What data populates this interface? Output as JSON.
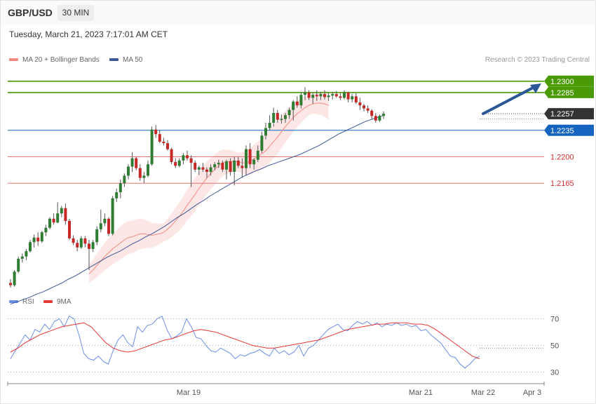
{
  "header": {
    "symbol": "GBP/USD",
    "timeframe": "30 MIN"
  },
  "datetime": "Tuesday, March 21, 2023 7:17:01 AM CET",
  "legend": {
    "ma20": "MA 20 + Bollinger Bands",
    "ma50": "MA 50",
    "rsi": "RSI",
    "ma9": "9MA"
  },
  "copyright": "Research © 2023 Trading Central",
  "colors": {
    "bull": "#2e7d32",
    "bear": "#c62828",
    "band_fill": "#fde2e2",
    "ma20": "#f28b82",
    "ma50": "#3b5998",
    "resistance": "#4a9a06",
    "support_blue": "#1565c0",
    "support_red": "#e57373",
    "arrow": "#2b5797",
    "rsi": "#6b8ee6",
    "rsi_ma": "#e53935"
  },
  "chart_data": [
    {
      "type": "candlestick",
      "title": "GBP/USD",
      "ylim": [
        1.2025,
        1.231
      ],
      "x_ticks": [
        "Mar 19",
        "Mar 21",
        "Mar 22",
        "Apr 3"
      ],
      "levels": [
        {
          "value": 1.23,
          "label": "1.2300",
          "kind": "resistance"
        },
        {
          "value": 1.2285,
          "label": "1.2285",
          "kind": "resistance"
        },
        {
          "value": 1.2257,
          "label": "1.2257",
          "kind": "last"
        },
        {
          "value": 1.2235,
          "label": "1.2235",
          "kind": "pivot"
        },
        {
          "value": 1.22,
          "label": "1.2200",
          "kind": "support"
        },
        {
          "value": 1.2165,
          "label": "1.2165",
          "kind": "support"
        }
      ],
      "candles": [
        [
          1.2033,
          1.2038,
          1.2027,
          1.203
        ],
        [
          1.203,
          1.205,
          1.2028,
          1.2048
        ],
        [
          1.2048,
          1.2068,
          1.2046,
          1.2065
        ],
        [
          1.2065,
          1.2072,
          1.206,
          1.2068
        ],
        [
          1.2068,
          1.2078,
          1.2063,
          1.2075
        ],
        [
          1.2075,
          1.209,
          1.2073,
          1.2087
        ],
        [
          1.2087,
          1.2097,
          1.208,
          1.2093
        ],
        [
          1.2093,
          1.21,
          1.2082,
          1.2088
        ],
        [
          1.2088,
          1.2102,
          1.2086,
          1.21
        ],
        [
          1.21,
          1.211,
          1.2095,
          1.2106
        ],
        [
          1.2106,
          1.212,
          1.2104,
          1.2118
        ],
        [
          1.2118,
          1.2125,
          1.211,
          1.2113
        ],
        [
          1.2113,
          1.214,
          1.2112,
          1.2125
        ],
        [
          1.2125,
          1.2135,
          1.212,
          1.2132
        ],
        [
          1.2132,
          1.2138,
          1.211,
          1.2115
        ],
        [
          1.2115,
          1.2118,
          1.209,
          1.2092
        ],
        [
          1.2092,
          1.2096,
          1.2083,
          1.2086
        ],
        [
          1.2086,
          1.209,
          1.2075,
          1.208
        ],
        [
          1.208,
          1.2095,
          1.2078,
          1.2092
        ],
        [
          1.2092,
          1.2095,
          1.208,
          1.2085
        ],
        [
          1.2085,
          1.209,
          1.205,
          1.2078
        ],
        [
          1.2078,
          1.209,
          1.2074,
          1.2087
        ],
        [
          1.2087,
          1.2108,
          1.2083,
          1.2104
        ],
        [
          1.2104,
          1.213,
          1.21,
          1.2112
        ],
        [
          1.2112,
          1.2125,
          1.2108,
          1.2118
        ],
        [
          1.2118,
          1.212,
          1.2095,
          1.2098
        ],
        [
          1.2098,
          1.2148,
          1.2096,
          1.2145
        ],
        [
          1.2145,
          1.2158,
          1.214,
          1.2153
        ],
        [
          1.2153,
          1.217,
          1.2145,
          1.2165
        ],
        [
          1.2165,
          1.2178,
          1.216,
          1.2175
        ],
        [
          1.2175,
          1.219,
          1.217,
          1.2187
        ],
        [
          1.2187,
          1.2206,
          1.218,
          1.2198
        ],
        [
          1.2198,
          1.22,
          1.2182,
          1.2185
        ],
        [
          1.2185,
          1.219,
          1.2168,
          1.2172
        ],
        [
          1.2172,
          1.218,
          1.2165,
          1.2175
        ],
        [
          1.2175,
          1.2195,
          1.2173,
          1.219
        ],
        [
          1.219,
          1.224,
          1.2188,
          1.2236
        ],
        [
          1.2236,
          1.2242,
          1.2225,
          1.223
        ],
        [
          1.223,
          1.2235,
          1.2218,
          1.222
        ],
        [
          1.222,
          1.2225,
          1.2215,
          1.2218
        ],
        [
          1.2218,
          1.2222,
          1.2208,
          1.221
        ],
        [
          1.221,
          1.2212,
          1.219,
          1.2193
        ],
        [
          1.2193,
          1.2198,
          1.2185,
          1.2188
        ],
        [
          1.2188,
          1.2198,
          1.2186,
          1.2195
        ],
        [
          1.2195,
          1.2205,
          1.219,
          1.2202
        ],
        [
          1.2202,
          1.2208,
          1.2195,
          1.2198
        ],
        [
          1.2198,
          1.2202,
          1.216,
          1.2192
        ],
        [
          1.2192,
          1.2195,
          1.218,
          1.2183
        ],
        [
          1.2183,
          1.2188,
          1.2176,
          1.2186
        ],
        [
          1.2186,
          1.2192,
          1.218,
          1.2183
        ],
        [
          1.2183,
          1.2186,
          1.2172,
          1.218
        ],
        [
          1.218,
          1.219,
          1.2175,
          1.2186
        ],
        [
          1.2186,
          1.2193,
          1.2182,
          1.219
        ],
        [
          1.219,
          1.2196,
          1.2185,
          1.2192
        ],
        [
          1.2192,
          1.2195,
          1.218,
          1.2183
        ],
        [
          1.2183,
          1.2196,
          1.217,
          1.2194
        ],
        [
          1.2194,
          1.2198,
          1.2175,
          1.218
        ],
        [
          1.218,
          1.22,
          1.2162,
          1.2195
        ],
        [
          1.2195,
          1.22,
          1.2185,
          1.2188
        ],
        [
          1.2188,
          1.2198,
          1.2172,
          1.2185
        ],
        [
          1.2185,
          1.2215,
          1.2175,
          1.221
        ],
        [
          1.221,
          1.2218,
          1.2185,
          1.219
        ],
        [
          1.219,
          1.2198,
          1.2183,
          1.2196
        ],
        [
          1.2196,
          1.2215,
          1.2193,
          1.2208
        ],
        [
          1.2208,
          1.2233,
          1.2205,
          1.2228
        ],
        [
          1.2228,
          1.2245,
          1.2223,
          1.2238
        ],
        [
          1.2238,
          1.2255,
          1.2235,
          1.2245
        ],
        [
          1.2245,
          1.2265,
          1.224,
          1.2258
        ],
        [
          1.2258,
          1.2262,
          1.2245,
          1.2249
        ],
        [
          1.2249,
          1.2256,
          1.2244,
          1.225
        ],
        [
          1.225,
          1.2258,
          1.2245,
          1.2255
        ],
        [
          1.2255,
          1.2265,
          1.225,
          1.2262
        ],
        [
          1.2262,
          1.2275,
          1.2248,
          1.2273
        ],
        [
          1.2273,
          1.228,
          1.2265,
          1.2268
        ],
        [
          1.2268,
          1.2285,
          1.2264,
          1.2282
        ],
        [
          1.2282,
          1.2292,
          1.2275,
          1.2285
        ],
        [
          1.2285,
          1.2288,
          1.2275,
          1.2278
        ],
        [
          1.2278,
          1.2285,
          1.227,
          1.2282
        ],
        [
          1.2282,
          1.2288,
          1.2274,
          1.228
        ],
        [
          1.228,
          1.2286,
          1.2275,
          1.2283
        ],
        [
          1.2283,
          1.2288,
          1.2276,
          1.2279
        ],
        [
          1.2279,
          1.2285,
          1.2274,
          1.2281
        ],
        [
          1.2281,
          1.2286,
          1.2276,
          1.2283
        ],
        [
          1.2283,
          1.2287,
          1.2278,
          1.228
        ],
        [
          1.228,
          1.2285,
          1.2275,
          1.2278
        ],
        [
          1.2278,
          1.2288,
          1.2276,
          1.2285
        ],
        [
          1.2285,
          1.2286,
          1.2272,
          1.2276
        ],
        [
          1.2276,
          1.2283,
          1.2272,
          1.228
        ],
        [
          1.228,
          1.2284,
          1.227,
          1.2272
        ],
        [
          1.2272,
          1.2278,
          1.2262,
          1.2268
        ],
        [
          1.2268,
          1.227,
          1.226,
          1.2264
        ],
        [
          1.2264,
          1.2268,
          1.2258,
          1.2261
        ],
        [
          1.2261,
          1.2263,
          1.225,
          1.2254
        ],
        [
          1.2254,
          1.2258,
          1.2245,
          1.2248
        ],
        [
          1.2248,
          1.2256,
          1.2246,
          1.2254
        ],
        [
          1.2254,
          1.226,
          1.225,
          1.2257
        ]
      ],
      "ma20": [
        1.2045,
        1.205,
        1.2056,
        1.2062,
        1.2068,
        1.2073,
        1.2078,
        1.2082,
        1.2086,
        1.209,
        1.2093,
        1.2094,
        1.2096,
        1.2098,
        1.2098,
        1.2097,
        1.2096,
        1.2097,
        1.2098,
        1.21,
        1.2104,
        1.2109,
        1.2115,
        1.2121,
        1.2128,
        1.2136,
        1.2143,
        1.215,
        1.2158,
        1.2165,
        1.2172,
        1.2178,
        1.2183,
        1.2188,
        1.2192,
        1.2193,
        1.2194,
        1.2194,
        1.2193,
        1.2192,
        1.2192,
        1.2194,
        1.2197,
        1.22,
        1.2204,
        1.2208,
        1.2214,
        1.222,
        1.2226,
        1.2233,
        1.224,
        1.2246,
        1.2252,
        1.2257,
        1.2261,
        1.2265,
        1.2268,
        1.227,
        1.2271,
        1.2271,
        1.227,
        1.2268
      ],
      "ma50": [
        1.2005,
        1.2008,
        1.2011,
        1.2014,
        1.2018,
        1.2021,
        1.2025,
        1.2029,
        1.2033,
        1.2038,
        1.2042,
        1.2047,
        1.2052,
        1.2057,
        1.2062,
        1.2067,
        1.2071,
        1.2075,
        1.208,
        1.2085,
        1.2089,
        1.2094,
        1.2098,
        1.2103,
        1.2108,
        1.2114,
        1.212,
        1.2125,
        1.2131,
        1.2137,
        1.2142,
        1.2148,
        1.2153,
        1.2158,
        1.2163,
        1.2168,
        1.2173,
        1.2177,
        1.2181,
        1.2184,
        1.2188,
        1.2191,
        1.2194,
        1.2197,
        1.22,
        1.2203,
        1.2207,
        1.2211,
        1.2215,
        1.222,
        1.2225,
        1.223,
        1.2234,
        1.2238,
        1.2242,
        1.2246,
        1.2249,
        1.2252,
        1.2255
      ]
    },
    {
      "type": "line",
      "title": "RSI",
      "ylim": [
        25,
        75
      ],
      "y_ticks": [
        70,
        50,
        30
      ],
      "series": [
        {
          "name": "RSI",
          "values": [
            40,
            46,
            52,
            58,
            54,
            62,
            60,
            66,
            62,
            68,
            70,
            64,
            72,
            70,
            58,
            44,
            40,
            39,
            42,
            38,
            36,
            46,
            54,
            58,
            52,
            49,
            64,
            60,
            65,
            66,
            70,
            72,
            62,
            55,
            57,
            60,
            70,
            64,
            56,
            55,
            50,
            46,
            45,
            48,
            46,
            44,
            40,
            43,
            42,
            44,
            45,
            47,
            44,
            42,
            48,
            44,
            46,
            43,
            45,
            50,
            42,
            48,
            50,
            54,
            58,
            62,
            64,
            66,
            62,
            61,
            65,
            68,
            66,
            68,
            65,
            67,
            64,
            66,
            65,
            67,
            65,
            66,
            64,
            65,
            61,
            62,
            58,
            55,
            52,
            47,
            42,
            41,
            36,
            33,
            36,
            40,
            42
          ]
        },
        {
          "name": "9MA",
          "values": [
            45,
            48,
            52,
            55,
            58,
            60,
            62,
            64,
            65,
            66,
            67,
            64,
            58,
            52,
            48,
            46,
            45,
            46,
            48,
            50,
            52,
            54,
            55,
            57,
            59,
            61,
            62,
            61,
            60,
            58,
            56,
            54,
            52,
            50,
            49,
            48,
            48,
            49,
            50,
            51,
            52,
            53,
            54,
            56,
            58,
            60,
            62,
            63,
            64,
            65,
            66,
            66,
            67,
            67,
            67,
            66,
            66,
            65,
            62,
            58,
            54,
            50,
            46,
            42,
            40
          ]
        }
      ]
    }
  ]
}
